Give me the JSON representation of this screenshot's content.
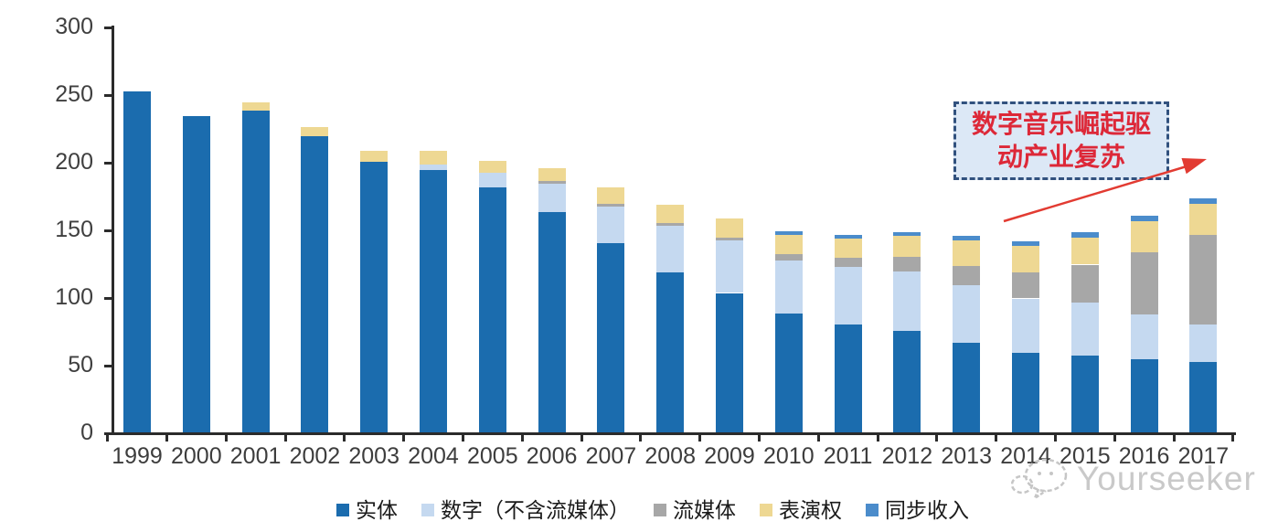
{
  "y_axis": {
    "tick_values": [
      "0",
      "50",
      "100",
      "150",
      "200",
      "250",
      "300"
    ]
  },
  "chart_data": {
    "type": "bar",
    "subtype": "stacked-vertical",
    "title": "",
    "xlabel": "",
    "ylabel": "",
    "ylim": [
      0,
      300
    ],
    "grid": false,
    "legend_position": "bottom",
    "categories": [
      "1999",
      "2000",
      "2001",
      "2002",
      "2003",
      "2004",
      "2005",
      "2006",
      "2007",
      "2008",
      "2009",
      "2010",
      "2011",
      "2012",
      "2013",
      "2014",
      "2015",
      "2016",
      "2017"
    ],
    "series": [
      {
        "id": "physical",
        "name": "实体",
        "color": "#1b6cae",
        "values": [
          252,
          234,
          238,
          219,
          200,
          194,
          181,
          163,
          140,
          118,
          103,
          88,
          80,
          75,
          66,
          59,
          57,
          54,
          52
        ]
      },
      {
        "id": "digital-excl-streaming",
        "name": "数字（不含流媒体）",
        "color": "#c5d9f0",
        "values": [
          0,
          0,
          0,
          0,
          0,
          4,
          11,
          21,
          27,
          35,
          39,
          39,
          42,
          44,
          43,
          40,
          39,
          33,
          28
        ]
      },
      {
        "id": "streaming",
        "name": "流媒体",
        "color": "#a7a7a7",
        "values": [
          0,
          0,
          0,
          0,
          0,
          0,
          0,
          2,
          2,
          2,
          2,
          5,
          7,
          11,
          14,
          19,
          28,
          46,
          66
        ]
      },
      {
        "id": "performance-rights",
        "name": "表演权",
        "color": "#eed893",
        "values": [
          0,
          0,
          6,
          7,
          8,
          10,
          9,
          9,
          12,
          13,
          14,
          14,
          14,
          15,
          19,
          20,
          20,
          23,
          23
        ]
      },
      {
        "id": "sync",
        "name": "同步收入",
        "color": "#4b8ccb",
        "values": [
          0,
          0,
          0,
          0,
          0,
          0,
          0,
          0,
          0,
          0,
          0,
          3,
          3,
          3,
          3,
          3,
          4,
          4,
          4
        ]
      }
    ]
  },
  "annotation": {
    "line1": "数字音乐崛起驱",
    "line2": "动产业复苏",
    "text_color": "#dd2838",
    "box_fill": "#dce8f6",
    "box_border": "#31517e",
    "arrow_color": "#e23b32"
  },
  "watermark": {
    "text": "Yourseeker",
    "color": "#c9c9c9"
  }
}
